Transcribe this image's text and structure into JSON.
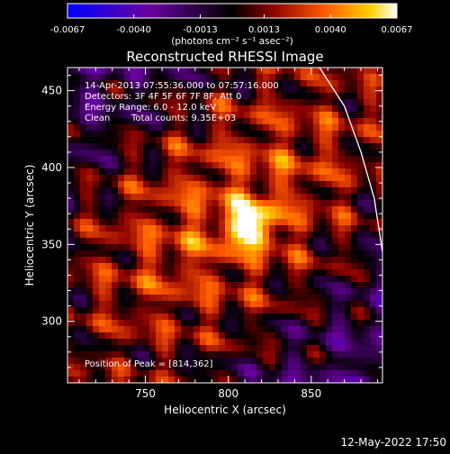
{
  "chart_data": {
    "type": "heatmap",
    "title": "Reconstructed RHESSI Image",
    "xlabel": "Heliocentric X (arcsec)",
    "ylabel": "Heliocentric Y (arcsec)",
    "xlim": [
      703,
      893
    ],
    "ylim": [
      260,
      465
    ],
    "x_ticks": [
      750,
      800,
      850
    ],
    "y_ticks": [
      300,
      350,
      400,
      450
    ],
    "colorbar": {
      "min": -0.0067,
      "max": 0.0067,
      "tick_values": [
        -0.0067,
        -0.004,
        -0.0013,
        0.0013,
        0.004,
        0.0067
      ],
      "tick_labels": [
        "-0.0067",
        "-0.0040",
        "-0.0013",
        "0.0013",
        "0.0040",
        "0.0067"
      ],
      "unit_label": "(photons cm⁻² s⁻¹ asec⁻²)"
    },
    "annotations": [
      "14-Apr-2013 07:55:36.000 to 07:57:16.000",
      "Detectors: 3F 4F 5F 6F 7F 8F, Att 0",
      "Energy Range: 6.0 - 12.0 keV",
      "Clean",
      "Total counts: 9.35E+03"
    ],
    "peak_label": "Position of Peak = [814,362]",
    "peak": [
      814,
      362
    ],
    "limb_curve": [
      [
        855,
        465
      ],
      [
        870,
        440
      ],
      [
        880,
        410
      ],
      [
        888,
        380
      ],
      [
        892,
        352
      ],
      [
        893,
        345
      ]
    ]
  },
  "footer_timestamp": "12-May-2022 17:50"
}
